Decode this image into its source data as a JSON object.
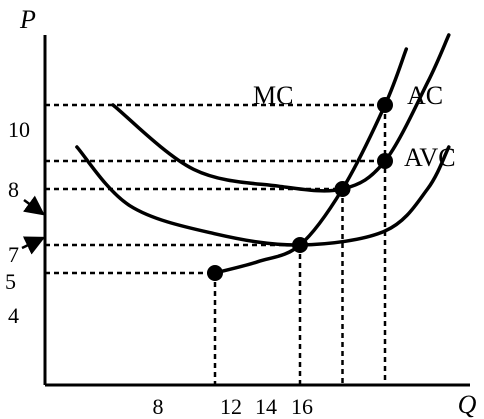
{
  "chart_data": {
    "type": "line",
    "xlabel": "Q",
    "ylabel": "P",
    "xlim": [
      0,
      20
    ],
    "ylim": [
      0,
      12.5
    ],
    "x_ticks": [
      "8",
      "12",
      "14",
      "16"
    ],
    "y_ticks": [
      "10",
      "8",
      "7",
      "5",
      "4"
    ],
    "series": [
      {
        "name": "MC",
        "x": [
          8,
          10,
          12,
          14,
          16,
          17
        ],
        "y": [
          4,
          4.4,
          5,
          7,
          10,
          12
        ]
      },
      {
        "name": "AC",
        "x": [
          3.2,
          7,
          11,
          14,
          16,
          18,
          19
        ],
        "y": [
          10,
          7.7,
          7.1,
          7,
          8,
          10.8,
          12.5
        ]
      },
      {
        "name": "AVC",
        "x": [
          1.5,
          4,
          8,
          12,
          16,
          18,
          19
        ],
        "y": [
          8.5,
          6.4,
          5.4,
          5,
          5.5,
          7,
          8.5
        ]
      }
    ],
    "points": [
      {
        "x": 8,
        "y": 4
      },
      {
        "x": 12,
        "y": 5
      },
      {
        "x": 14,
        "y": 7
      },
      {
        "x": 16,
        "y": 10
      },
      {
        "x": 16,
        "y": 8
      }
    ],
    "guides_y": [
      10,
      8,
      7,
      5,
      4
    ],
    "arrow_ticks": [
      "8",
      "7"
    ],
    "grid": false,
    "colors": {
      "ink": "#000000",
      "background": "#ffffff"
    }
  }
}
